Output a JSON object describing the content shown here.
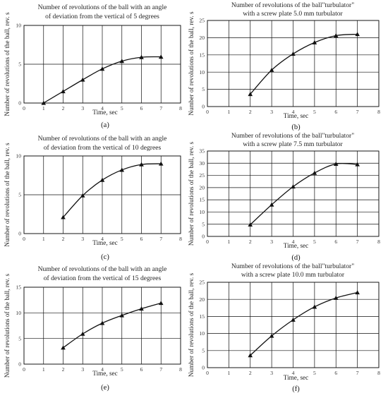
{
  "figure": {
    "panels": [
      {
        "id": "a",
        "caption": "(a)",
        "title_lines": [
          "Number of revolutions of the ball with an angle",
          "of deviation from the vertical of 5 degrees"
        ]
      },
      {
        "id": "b",
        "caption": "(b)",
        "title_lines": [
          "Number of revolutions of the ball\"turbulator\"",
          "with a screw plate 5.0 mm turbulator"
        ]
      },
      {
        "id": "c",
        "caption": "(c)",
        "title_lines": [
          "Number of revolutions of the ball with an angle",
          "of deviation from the vertical of 10 degrees"
        ]
      },
      {
        "id": "d",
        "caption": "(d)",
        "title_lines": [
          "Number of revolutions of the ball\"turbulator\"",
          "with a screw plate 7.5 mm turbulator"
        ]
      },
      {
        "id": "e",
        "caption": "(e)",
        "title_lines": [
          "Number of revolutions of the ball with an angle",
          "of deviation from the vertical of 15 degrees"
        ]
      },
      {
        "id": "f",
        "caption": "(f)",
        "title_lines": [
          "Number of revolutions of the ball\"turbulator\"",
          "with a screw plate 10.0 mm turbulator"
        ]
      }
    ]
  },
  "chart_data": [
    {
      "type": "line",
      "panel": "a",
      "xlabel": "Time, sec",
      "ylabel": "Number of revolutions of the ball, rev. s",
      "xlim": [
        0,
        8
      ],
      "ylim": [
        0,
        10
      ],
      "xticks": [
        0,
        1,
        2,
        3,
        4,
        5,
        6,
        7,
        8
      ],
      "yticks": [
        0,
        5,
        10
      ],
      "x": [
        1,
        2,
        3,
        4,
        5,
        6,
        7
      ],
      "y": [
        0,
        1.5,
        3.0,
        4.4,
        5.4,
        5.9,
        5.95
      ]
    },
    {
      "type": "line",
      "panel": "b",
      "xlabel": "Time, sec",
      "ylabel": "Number of revolutions of the ball, rev. s",
      "xlim": [
        0,
        8
      ],
      "ylim": [
        0,
        25
      ],
      "xticks": [
        0,
        1,
        2,
        3,
        4,
        5,
        6,
        7,
        8
      ],
      "yticks": [
        0,
        5,
        10,
        15,
        20,
        25
      ],
      "x": [
        2,
        3,
        4,
        5,
        6,
        7
      ],
      "y": [
        3.6,
        10.6,
        15.3,
        18.6,
        20.6,
        21.0
      ]
    },
    {
      "type": "line",
      "panel": "c",
      "xlabel": "Time, sec",
      "ylabel": "Number of revolutions of the ball, rev. s",
      "xlim": [
        0,
        8
      ],
      "ylim": [
        0,
        10
      ],
      "xticks": [
        0,
        1,
        2,
        3,
        4,
        5,
        6,
        7,
        8
      ],
      "yticks": [
        0,
        5,
        10
      ],
      "x": [
        2,
        3,
        4,
        5,
        6,
        7
      ],
      "y": [
        2.1,
        4.9,
        6.9,
        8.2,
        8.9,
        9.0
      ]
    },
    {
      "type": "line",
      "panel": "d",
      "xlabel": "Time, sec",
      "ylabel": "Number of revolutions of the ball, rev. s",
      "xlim": [
        0,
        8
      ],
      "ylim": [
        0,
        35
      ],
      "xticks": [
        0,
        1,
        2,
        3,
        4,
        5,
        6,
        7,
        8
      ],
      "yticks": [
        0,
        5,
        10,
        15,
        20,
        25,
        30,
        35
      ],
      "x": [
        2,
        3,
        4,
        5,
        6,
        7
      ],
      "y": [
        4.8,
        13.0,
        20.4,
        26.0,
        29.7,
        29.5
      ]
    },
    {
      "type": "line",
      "panel": "e",
      "xlabel": "Time, sec",
      "ylabel": "Number of revolutions of the ball, rev. s",
      "xlim": [
        0,
        8
      ],
      "ylim": [
        0,
        15
      ],
      "xticks": [
        0,
        1,
        2,
        3,
        4,
        5,
        6,
        7,
        8
      ],
      "yticks": [
        0,
        5,
        10,
        15
      ],
      "x": [
        2,
        3,
        4,
        5,
        6,
        7
      ],
      "y": [
        3.2,
        5.9,
        8.0,
        9.5,
        10.8,
        11.9
      ]
    },
    {
      "type": "line",
      "panel": "f",
      "xlabel": "Time, sec",
      "ylabel": "Number of revolutions of the ball, rev. s",
      "xlim": [
        0,
        8
      ],
      "ylim": [
        0,
        25
      ],
      "xticks": [
        0,
        1,
        2,
        3,
        4,
        5,
        6,
        7,
        8
      ],
      "yticks": [
        0,
        5,
        10,
        15,
        20,
        25
      ],
      "x": [
        2,
        3,
        4,
        5,
        6,
        7
      ],
      "y": [
        3.6,
        9.3,
        14.0,
        17.8,
        20.4,
        22.0
      ]
    }
  ]
}
